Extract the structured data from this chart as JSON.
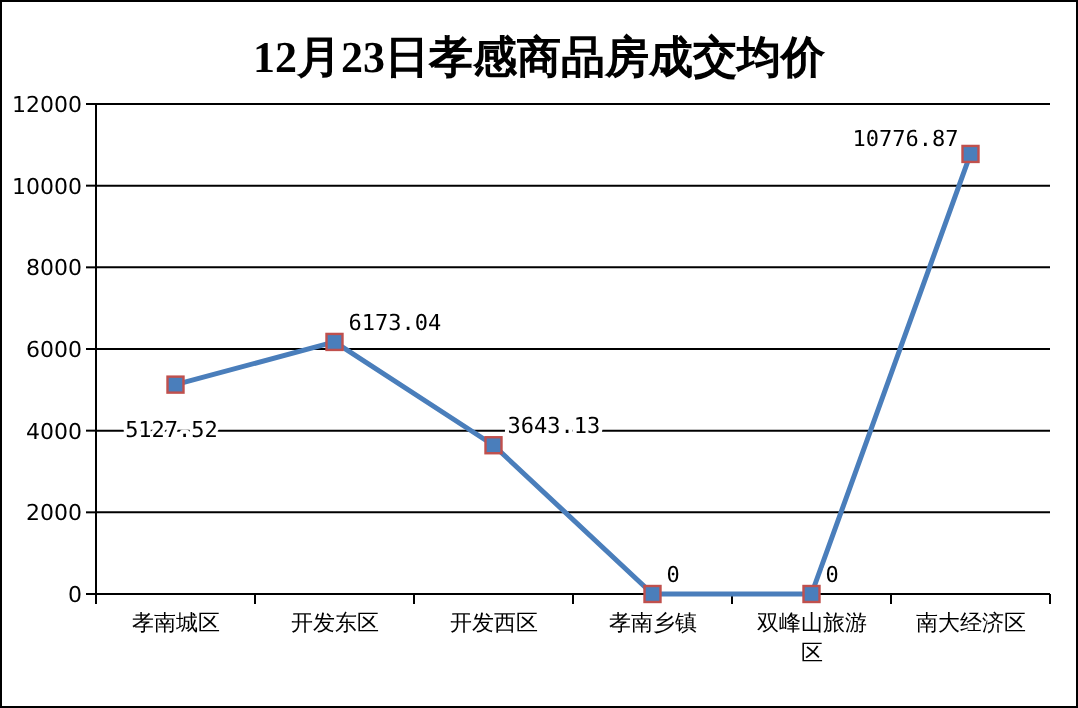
{
  "chart_data": {
    "type": "line",
    "title": "12月23日孝感商品房成交均价",
    "categories": [
      "孝南城区",
      "开发东区",
      "开发西区",
      "孝南乡镇",
      "双峰山旅游区",
      "南大经济区"
    ],
    "series": [
      {
        "color": "#4a7ebb",
        "values": [
          5127.52,
          6173.04,
          3643.13,
          0,
          0,
          10776.87
        ]
      }
    ],
    "ylim": [
      0,
      12000
    ],
    "yticks": [
      0,
      2000,
      4000,
      6000,
      8000,
      10000,
      12000
    ],
    "grid": "y",
    "marker": "square",
    "line_style": "solid",
    "data_labels": true
  }
}
